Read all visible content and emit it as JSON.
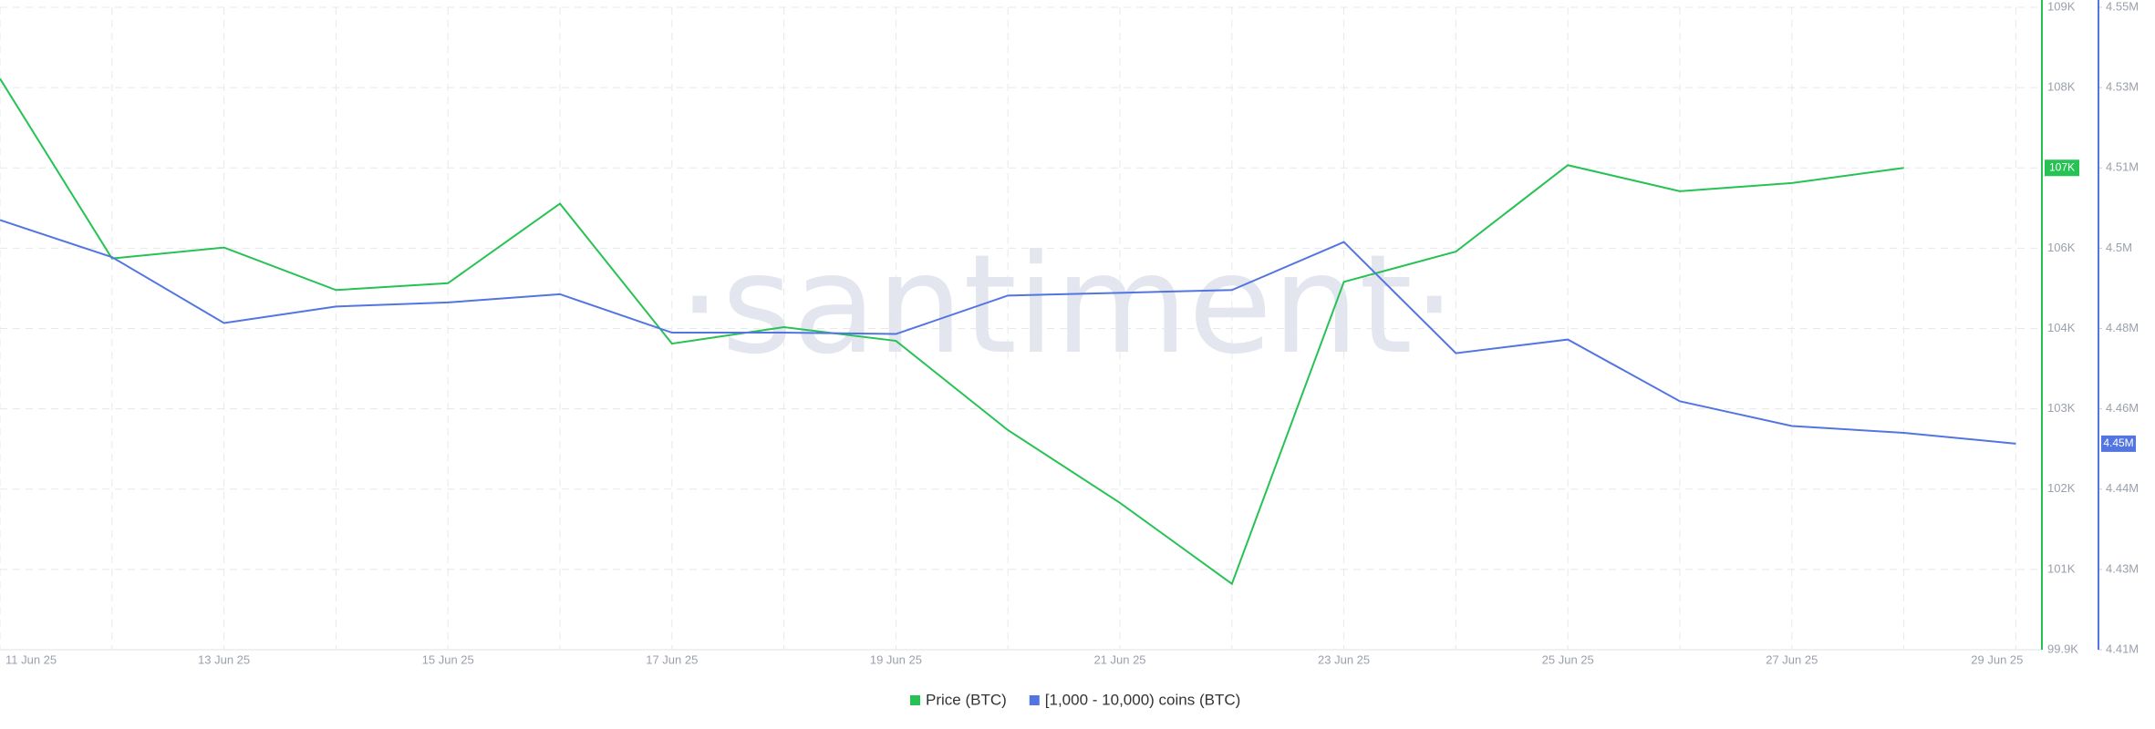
{
  "chart_data": {
    "type": "line",
    "watermark": "·santiment·",
    "categories": [
      "11 Jun 25",
      null,
      "13 Jun 25",
      null,
      "15 Jun 25",
      null,
      "17 Jun 25",
      null,
      "19 Jun 25",
      null,
      "21 Jun 25",
      null,
      "23 Jun 25",
      null,
      "25 Jun 25",
      null,
      "27 Jun 25",
      null,
      "29 Jun 25"
    ],
    "series": [
      {
        "name": "Price (BTC)",
        "color": "#26c253",
        "axis": "y",
        "current_label": "107K",
        "current_value": 106725,
        "values": [
          107989,
          105442,
          105597,
          104995,
          105092,
          106219,
          104236,
          104469,
          104275,
          103011,
          101981,
          100833,
          105111,
          105539,
          106764,
          106394,
          106511,
          106725,
          null
        ]
      },
      {
        "name": "[1,000 - 10,000) coins (BTC)",
        "color": "#5275e1",
        "axis": "y2",
        "current_label": "4.45M",
        "current_value": 4454900,
        "values": [
          4503630,
          4495560,
          4481200,
          4484790,
          4485680,
          4487480,
          4479100,
          4479100,
          4478800,
          4487180,
          4487780,
          4488380,
          4498850,
          4474620,
          4477600,
          4464150,
          4458760,
          4457260,
          4454900
        ]
      }
    ],
    "ylim": [
      99900,
      109000
    ],
    "yticks": [
      {
        "value": 99900,
        "label": "99.9K"
      },
      {
        "value": 101037.5,
        "label": "101K"
      },
      {
        "value": 102175,
        "label": "102K"
      },
      {
        "value": 103312.5,
        "label": "103K"
      },
      {
        "value": 104450,
        "label": "104K"
      },
      {
        "value": 105587.5,
        "label": "106K"
      },
      {
        "value": 106725,
        "label": "107K"
      },
      {
        "value": 107862.5,
        "label": "108K"
      },
      {
        "value": 109000,
        "label": "109K"
      }
    ],
    "y2lim": [
      4410000,
      4550000
    ],
    "y2ticks": [
      {
        "value": 4410000,
        "label": "4.41M"
      },
      {
        "value": 4427500,
        "label": "4.43M"
      },
      {
        "value": 4445000,
        "label": "4.44M"
      },
      {
        "value": 4462500,
        "label": "4.46M"
      },
      {
        "value": 4480000,
        "label": "4.48M"
      },
      {
        "value": 4497500,
        "label": "4.5M"
      },
      {
        "value": 4515000,
        "label": "4.51M"
      },
      {
        "value": 4532500,
        "label": "4.53M"
      },
      {
        "value": 4550000,
        "label": "4.55M"
      }
    ],
    "grid": true,
    "legend": "bottom"
  }
}
